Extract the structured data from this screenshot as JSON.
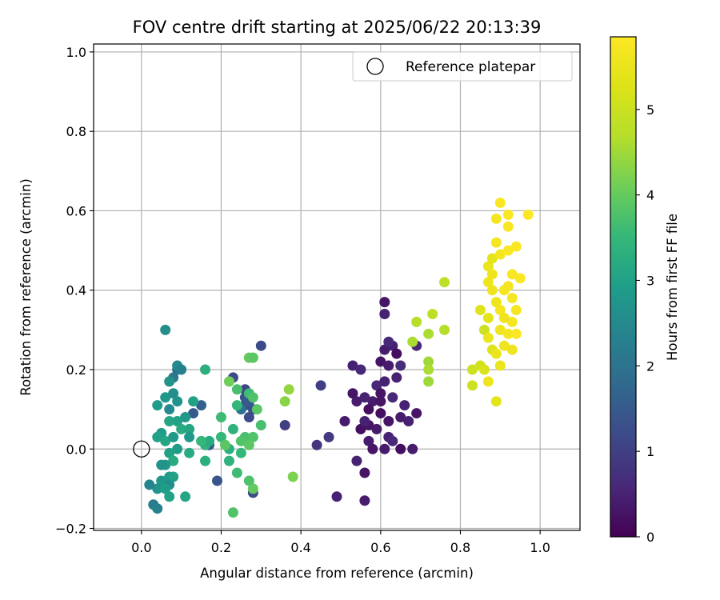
{
  "chart_data": {
    "type": "scatter",
    "title": "FOV centre drift starting at 2025/06/22 20:13:39",
    "xlabel": "Angular distance from reference (arcmin)",
    "ylabel": "Rotation from reference (arcmin)",
    "xlim": [
      -0.12,
      1.1
    ],
    "ylim": [
      -0.205,
      1.02
    ],
    "xticks": [
      0.0,
      0.2,
      0.4,
      0.6,
      0.8,
      1.0
    ],
    "xtick_labels": [
      "0.0",
      "0.2",
      "0.4",
      "0.6",
      "0.8",
      "1.0"
    ],
    "yticks": [
      -0.2,
      0.0,
      0.2,
      0.4,
      0.6,
      0.8,
      1.0
    ],
    "ytick_labels": [
      "−0.2",
      "0.0",
      "0.2",
      "0.4",
      "0.6",
      "0.8",
      "1.0"
    ],
    "grid": true,
    "legend": {
      "placement": "top-right",
      "entries": [
        "Reference platepar"
      ]
    },
    "reference_point": {
      "name": "Reference platepar",
      "x": 0.0,
      "y": 0.0
    },
    "colorbar": {
      "label": "Hours from first FF file",
      "colormap": "viridis",
      "range": [
        0,
        5.85
      ],
      "ticks": [
        0,
        1,
        2,
        3,
        4,
        5
      ],
      "tick_labels": [
        "0",
        "1",
        "2",
        "3",
        "4",
        "5"
      ]
    },
    "points": [
      {
        "x": 0.61,
        "y": 0.37,
        "h": 0.3
      },
      {
        "x": 0.63,
        "y": 0.26,
        "h": 0.5
      },
      {
        "x": 0.61,
        "y": 0.25,
        "h": 0.4
      },
      {
        "x": 0.62,
        "y": 0.27,
        "h": 0.6
      },
      {
        "x": 0.64,
        "y": 0.24,
        "h": 0.2
      },
      {
        "x": 0.6,
        "y": 0.22,
        "h": 0.3
      },
      {
        "x": 0.64,
        "y": 0.18,
        "h": 0.5
      },
      {
        "x": 0.62,
        "y": 0.21,
        "h": 0.4
      },
      {
        "x": 0.59,
        "y": 0.16,
        "h": 0.6
      },
      {
        "x": 0.6,
        "y": 0.14,
        "h": 0.3
      },
      {
        "x": 0.61,
        "y": 0.17,
        "h": 0.5
      },
      {
        "x": 0.65,
        "y": 0.21,
        "h": 0.7
      },
      {
        "x": 0.58,
        "y": 0.12,
        "h": 0.4
      },
      {
        "x": 0.53,
        "y": 0.21,
        "h": 0.5
      },
      {
        "x": 0.55,
        "y": 0.2,
        "h": 0.6
      },
      {
        "x": 0.53,
        "y": 0.14,
        "h": 0.3
      },
      {
        "x": 0.54,
        "y": 0.12,
        "h": 0.4
      },
      {
        "x": 0.56,
        "y": 0.13,
        "h": 0.5
      },
      {
        "x": 0.57,
        "y": 0.1,
        "h": 0.2
      },
      {
        "x": 0.6,
        "y": 0.12,
        "h": 0.3
      },
      {
        "x": 0.63,
        "y": 0.13,
        "h": 0.6
      },
      {
        "x": 0.66,
        "y": 0.11,
        "h": 0.5
      },
      {
        "x": 0.65,
        "y": 0.08,
        "h": 0.4
      },
      {
        "x": 0.62,
        "y": 0.07,
        "h": 0.3
      },
      {
        "x": 0.6,
        "y": 0.09,
        "h": 0.2
      },
      {
        "x": 0.67,
        "y": 0.07,
        "h": 0.5
      },
      {
        "x": 0.69,
        "y": 0.09,
        "h": 0.3
      },
      {
        "x": 0.59,
        "y": 0.05,
        "h": 0.4
      },
      {
        "x": 0.57,
        "y": 0.06,
        "h": 0.3
      },
      {
        "x": 0.55,
        "y": 0.05,
        "h": 0.2
      },
      {
        "x": 0.56,
        "y": 0.07,
        "h": 0.5
      },
      {
        "x": 0.51,
        "y": 0.07,
        "h": 0.4
      },
      {
        "x": 0.57,
        "y": 0.02,
        "h": 0.4
      },
      {
        "x": 0.62,
        "y": 0.03,
        "h": 0.5
      },
      {
        "x": 0.63,
        "y": 0.02,
        "h": 0.6
      },
      {
        "x": 0.58,
        "y": 0.0,
        "h": 0.3
      },
      {
        "x": 0.61,
        "y": 0.0,
        "h": 0.4
      },
      {
        "x": 0.65,
        "y": 0.0,
        "h": 0.2
      },
      {
        "x": 0.68,
        "y": 0.0,
        "h": 0.4
      },
      {
        "x": 0.54,
        "y": -0.03,
        "h": 0.5
      },
      {
        "x": 0.56,
        "y": -0.06,
        "h": 0.3
      },
      {
        "x": 0.49,
        "y": -0.12,
        "h": 0.5
      },
      {
        "x": 0.56,
        "y": -0.13,
        "h": 0.4
      },
      {
        "x": 0.47,
        "y": 0.03,
        "h": 0.9
      },
      {
        "x": 0.44,
        "y": 0.01,
        "h": 0.8
      },
      {
        "x": 0.45,
        "y": 0.16,
        "h": 1.0
      },
      {
        "x": 0.69,
        "y": 0.26,
        "h": 0.6
      },
      {
        "x": 0.61,
        "y": 0.34,
        "h": 0.5
      },
      {
        "x": 0.3,
        "y": 0.26,
        "h": 1.2
      },
      {
        "x": 0.26,
        "y": 0.13,
        "h": 1.4
      },
      {
        "x": 0.28,
        "y": 0.1,
        "h": 1.3
      },
      {
        "x": 0.27,
        "y": 0.08,
        "h": 1.2
      },
      {
        "x": 0.26,
        "y": 0.11,
        "h": 1.3
      },
      {
        "x": 0.26,
        "y": 0.15,
        "h": 1.1
      },
      {
        "x": 0.23,
        "y": 0.18,
        "h": 1.2
      },
      {
        "x": 0.36,
        "y": 0.06,
        "h": 1.0
      },
      {
        "x": 0.28,
        "y": -0.11,
        "h": 1.2
      },
      {
        "x": 0.19,
        "y": -0.08,
        "h": 1.4
      },
      {
        "x": 0.17,
        "y": 0.01,
        "h": 1.5
      },
      {
        "x": 0.15,
        "y": 0.11,
        "h": 1.6
      },
      {
        "x": 0.13,
        "y": 0.09,
        "h": 1.5
      },
      {
        "x": 0.09,
        "y": 0.2,
        "h": 1.9
      },
      {
        "x": 0.08,
        "y": 0.18,
        "h": 2.1
      },
      {
        "x": 0.27,
        "y": 0.12,
        "h": 1.5
      },
      {
        "x": 0.25,
        "y": 0.1,
        "h": 2.0
      },
      {
        "x": 0.06,
        "y": 0.3,
        "h": 2.6
      },
      {
        "x": 0.09,
        "y": 0.21,
        "h": 2.5
      },
      {
        "x": 0.1,
        "y": 0.2,
        "h": 2.3
      },
      {
        "x": 0.07,
        "y": 0.17,
        "h": 2.7
      },
      {
        "x": 0.08,
        "y": 0.14,
        "h": 2.6
      },
      {
        "x": 0.06,
        "y": 0.13,
        "h": 2.8
      },
      {
        "x": 0.04,
        "y": 0.11,
        "h": 2.9
      },
      {
        "x": 0.07,
        "y": 0.1,
        "h": 2.5
      },
      {
        "x": 0.09,
        "y": 0.12,
        "h": 2.7
      },
      {
        "x": 0.11,
        "y": 0.08,
        "h": 2.8
      },
      {
        "x": 0.09,
        "y": 0.07,
        "h": 3.0
      },
      {
        "x": 0.07,
        "y": 0.07,
        "h": 3.1
      },
      {
        "x": 0.1,
        "y": 0.05,
        "h": 3.2
      },
      {
        "x": 0.12,
        "y": 0.05,
        "h": 3.1
      },
      {
        "x": 0.05,
        "y": 0.04,
        "h": 2.9
      },
      {
        "x": 0.04,
        "y": 0.03,
        "h": 3.0
      },
      {
        "x": 0.06,
        "y": 0.02,
        "h": 3.1
      },
      {
        "x": 0.08,
        "y": 0.03,
        "h": 2.8
      },
      {
        "x": 0.09,
        "y": 0.0,
        "h": 2.9
      },
      {
        "x": 0.07,
        "y": -0.01,
        "h": 3.0
      },
      {
        "x": 0.08,
        "y": -0.03,
        "h": 3.2
      },
      {
        "x": 0.06,
        "y": -0.04,
        "h": 2.8
      },
      {
        "x": 0.05,
        "y": -0.04,
        "h": 2.7
      },
      {
        "x": 0.07,
        "y": -0.07,
        "h": 2.9
      },
      {
        "x": 0.08,
        "y": -0.07,
        "h": 3.0
      },
      {
        "x": 0.05,
        "y": -0.08,
        "h": 2.8
      },
      {
        "x": 0.07,
        "y": -0.09,
        "h": 2.6
      },
      {
        "x": 0.04,
        "y": -0.1,
        "h": 2.7
      },
      {
        "x": 0.06,
        "y": -0.1,
        "h": 2.9
      },
      {
        "x": 0.07,
        "y": -0.12,
        "h": 3.0
      },
      {
        "x": 0.03,
        "y": -0.14,
        "h": 2.2
      },
      {
        "x": 0.04,
        "y": -0.15,
        "h": 2.3
      },
      {
        "x": 0.02,
        "y": -0.09,
        "h": 2.4
      },
      {
        "x": 0.11,
        "y": -0.12,
        "h": 3.1
      },
      {
        "x": 0.12,
        "y": -0.01,
        "h": 3.2
      },
      {
        "x": 0.12,
        "y": 0.03,
        "h": 2.8
      },
      {
        "x": 0.13,
        "y": 0.12,
        "h": 3.0
      },
      {
        "x": 0.16,
        "y": 0.2,
        "h": 3.3
      },
      {
        "x": 0.16,
        "y": 0.01,
        "h": 3.4
      },
      {
        "x": 0.16,
        "y": -0.03,
        "h": 3.3
      },
      {
        "x": 0.17,
        "y": 0.02,
        "h": 3.2
      },
      {
        "x": 0.15,
        "y": 0.02,
        "h": 3.5
      },
      {
        "x": 0.2,
        "y": 0.08,
        "h": 3.6
      },
      {
        "x": 0.2,
        "y": 0.03,
        "h": 3.5
      },
      {
        "x": 0.22,
        "y": -0.03,
        "h": 3.4
      },
      {
        "x": 0.22,
        "y": 0.0,
        "h": 3.3
      },
      {
        "x": 0.23,
        "y": 0.05,
        "h": 3.4
      },
      {
        "x": 0.24,
        "y": 0.11,
        "h": 3.5
      },
      {
        "x": 0.24,
        "y": -0.06,
        "h": 3.6
      },
      {
        "x": 0.25,
        "y": -0.01,
        "h": 3.5
      },
      {
        "x": 0.23,
        "y": -0.16,
        "h": 3.8
      },
      {
        "x": 0.26,
        "y": 0.03,
        "h": 3.7
      },
      {
        "x": 0.25,
        "y": 0.02,
        "h": 3.8
      },
      {
        "x": 0.21,
        "y": 0.01,
        "h": 3.9
      },
      {
        "x": 0.24,
        "y": 0.15,
        "h": 3.7
      },
      {
        "x": 0.27,
        "y": 0.14,
        "h": 3.6
      },
      {
        "x": 0.28,
        "y": 0.13,
        "h": 3.8
      },
      {
        "x": 0.29,
        "y": 0.1,
        "h": 3.9
      },
      {
        "x": 0.3,
        "y": 0.06,
        "h": 3.7
      },
      {
        "x": 0.28,
        "y": 0.03,
        "h": 3.8
      },
      {
        "x": 0.27,
        "y": 0.01,
        "h": 3.9
      },
      {
        "x": 0.28,
        "y": -0.1,
        "h": 4.0
      },
      {
        "x": 0.27,
        "y": -0.08,
        "h": 3.8
      },
      {
        "x": 0.27,
        "y": 0.23,
        "h": 4.0
      },
      {
        "x": 0.28,
        "y": 0.23,
        "h": 3.9
      },
      {
        "x": 0.22,
        "y": 0.17,
        "h": 4.1
      },
      {
        "x": 0.36,
        "y": 0.12,
        "h": 4.3
      },
      {
        "x": 0.37,
        "y": 0.15,
        "h": 4.4
      },
      {
        "x": 0.38,
        "y": -0.07,
        "h": 4.2
      },
      {
        "x": 0.68,
        "y": 0.27,
        "h": 4.6
      },
      {
        "x": 0.69,
        "y": 0.32,
        "h": 4.7
      },
      {
        "x": 0.72,
        "y": 0.29,
        "h": 4.6
      },
      {
        "x": 0.73,
        "y": 0.34,
        "h": 4.8
      },
      {
        "x": 0.72,
        "y": 0.22,
        "h": 4.5
      },
      {
        "x": 0.72,
        "y": 0.2,
        "h": 4.6
      },
      {
        "x": 0.72,
        "y": 0.17,
        "h": 4.5
      },
      {
        "x": 0.76,
        "y": 0.3,
        "h": 4.7
      },
      {
        "x": 0.76,
        "y": 0.42,
        "h": 4.8
      },
      {
        "x": 0.83,
        "y": 0.16,
        "h": 5.0
      },
      {
        "x": 0.83,
        "y": 0.2,
        "h": 5.0
      },
      {
        "x": 0.85,
        "y": 0.21,
        "h": 5.1
      },
      {
        "x": 0.86,
        "y": 0.3,
        "h": 5.0
      },
      {
        "x": 0.85,
        "y": 0.35,
        "h": 5.3
      },
      {
        "x": 0.86,
        "y": 0.2,
        "h": 5.2
      },
      {
        "x": 0.87,
        "y": 0.17,
        "h": 5.6
      },
      {
        "x": 0.87,
        "y": 0.28,
        "h": 5.5
      },
      {
        "x": 0.87,
        "y": 0.33,
        "h": 5.4
      },
      {
        "x": 0.87,
        "y": 0.42,
        "h": 5.6
      },
      {
        "x": 0.87,
        "y": 0.46,
        "h": 5.5
      },
      {
        "x": 0.88,
        "y": 0.25,
        "h": 5.3
      },
      {
        "x": 0.88,
        "y": 0.4,
        "h": 5.6
      },
      {
        "x": 0.88,
        "y": 0.48,
        "h": 5.4
      },
      {
        "x": 0.89,
        "y": 0.12,
        "h": 5.4
      },
      {
        "x": 0.89,
        "y": 0.24,
        "h": 5.5
      },
      {
        "x": 0.89,
        "y": 0.37,
        "h": 5.6
      },
      {
        "x": 0.89,
        "y": 0.58,
        "h": 5.7
      },
      {
        "x": 0.9,
        "y": 0.62,
        "h": 5.8
      },
      {
        "x": 0.9,
        "y": 0.21,
        "h": 5.5
      },
      {
        "x": 0.9,
        "y": 0.3,
        "h": 5.6
      },
      {
        "x": 0.9,
        "y": 0.35,
        "h": 5.7
      },
      {
        "x": 0.9,
        "y": 0.49,
        "h": 5.7
      },
      {
        "x": 0.91,
        "y": 0.26,
        "h": 5.6
      },
      {
        "x": 0.91,
        "y": 0.4,
        "h": 5.7
      },
      {
        "x": 0.92,
        "y": 0.29,
        "h": 5.7
      },
      {
        "x": 0.92,
        "y": 0.5,
        "h": 5.8
      },
      {
        "x": 0.92,
        "y": 0.59,
        "h": 5.8
      },
      {
        "x": 0.92,
        "y": 0.56,
        "h": 5.8
      },
      {
        "x": 0.93,
        "y": 0.25,
        "h": 5.6
      },
      {
        "x": 0.93,
        "y": 0.32,
        "h": 5.7
      },
      {
        "x": 0.93,
        "y": 0.44,
        "h": 5.8
      },
      {
        "x": 0.93,
        "y": 0.38,
        "h": 5.7
      },
      {
        "x": 0.94,
        "y": 0.29,
        "h": 5.8
      },
      {
        "x": 0.94,
        "y": 0.35,
        "h": 5.7
      },
      {
        "x": 0.94,
        "y": 0.51,
        "h": 5.8
      },
      {
        "x": 0.95,
        "y": 0.43,
        "h": 5.8
      },
      {
        "x": 0.97,
        "y": 0.59,
        "h": 5.9
      },
      {
        "x": 0.88,
        "y": 0.44,
        "h": 5.6
      },
      {
        "x": 0.89,
        "y": 0.52,
        "h": 5.7
      },
      {
        "x": 0.91,
        "y": 0.33,
        "h": 5.6
      },
      {
        "x": 0.92,
        "y": 0.41,
        "h": 5.7
      }
    ]
  }
}
